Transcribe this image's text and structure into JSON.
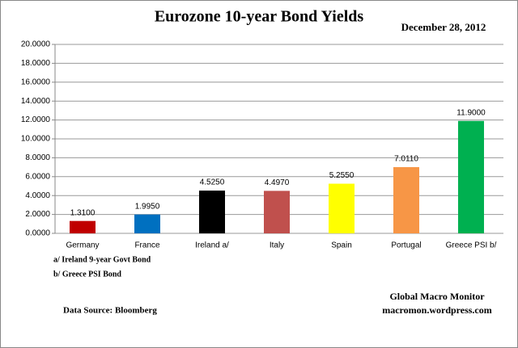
{
  "chart_data": {
    "type": "bar",
    "title": "Eurozone 10-year Bond Yields",
    "subtitle": "December 28, 2012",
    "categories": [
      "Germany",
      "France",
      "Ireland  a/",
      "Italy",
      "Spain",
      "Portugal",
      "Greece PSI b/"
    ],
    "values": [
      1.31,
      1.995,
      4.525,
      4.497,
      5.255,
      7.011,
      11.9
    ],
    "value_labels": [
      "1.3100",
      "1.9950",
      "4.5250",
      "4.4970",
      "5.2550",
      "7.0110",
      "11.9000"
    ],
    "colors": [
      "#c00000",
      "#0070c0",
      "#000000",
      "#c0504d",
      "#ffff00",
      "#f79646",
      "#00b050"
    ],
    "ylim": [
      0,
      20
    ],
    "yticks": [
      {
        "value": 0,
        "label": "0.0000"
      },
      {
        "value": 2,
        "label": "2.0000"
      },
      {
        "value": 4,
        "label": "4.0000"
      },
      {
        "value": 6,
        "label": "6.0000"
      },
      {
        "value": 8,
        "label": "8.0000"
      },
      {
        "value": 10,
        "label": "10.0000"
      },
      {
        "value": 12,
        "label": "12.0000"
      },
      {
        "value": 14,
        "label": "14.0000"
      },
      {
        "value": 16,
        "label": "16.0000"
      },
      {
        "value": 18,
        "label": "18.0000"
      },
      {
        "value": 20,
        "label": "20.0000"
      }
    ],
    "grid": true,
    "notes": [
      "a/ Ireland 9-year Govt Bond",
      "b/ Greece PSI Bond"
    ],
    "source": "Data Source:  Bloomberg",
    "credit": [
      "Global Macro Monitor",
      "macromon.wordpress.com"
    ]
  }
}
